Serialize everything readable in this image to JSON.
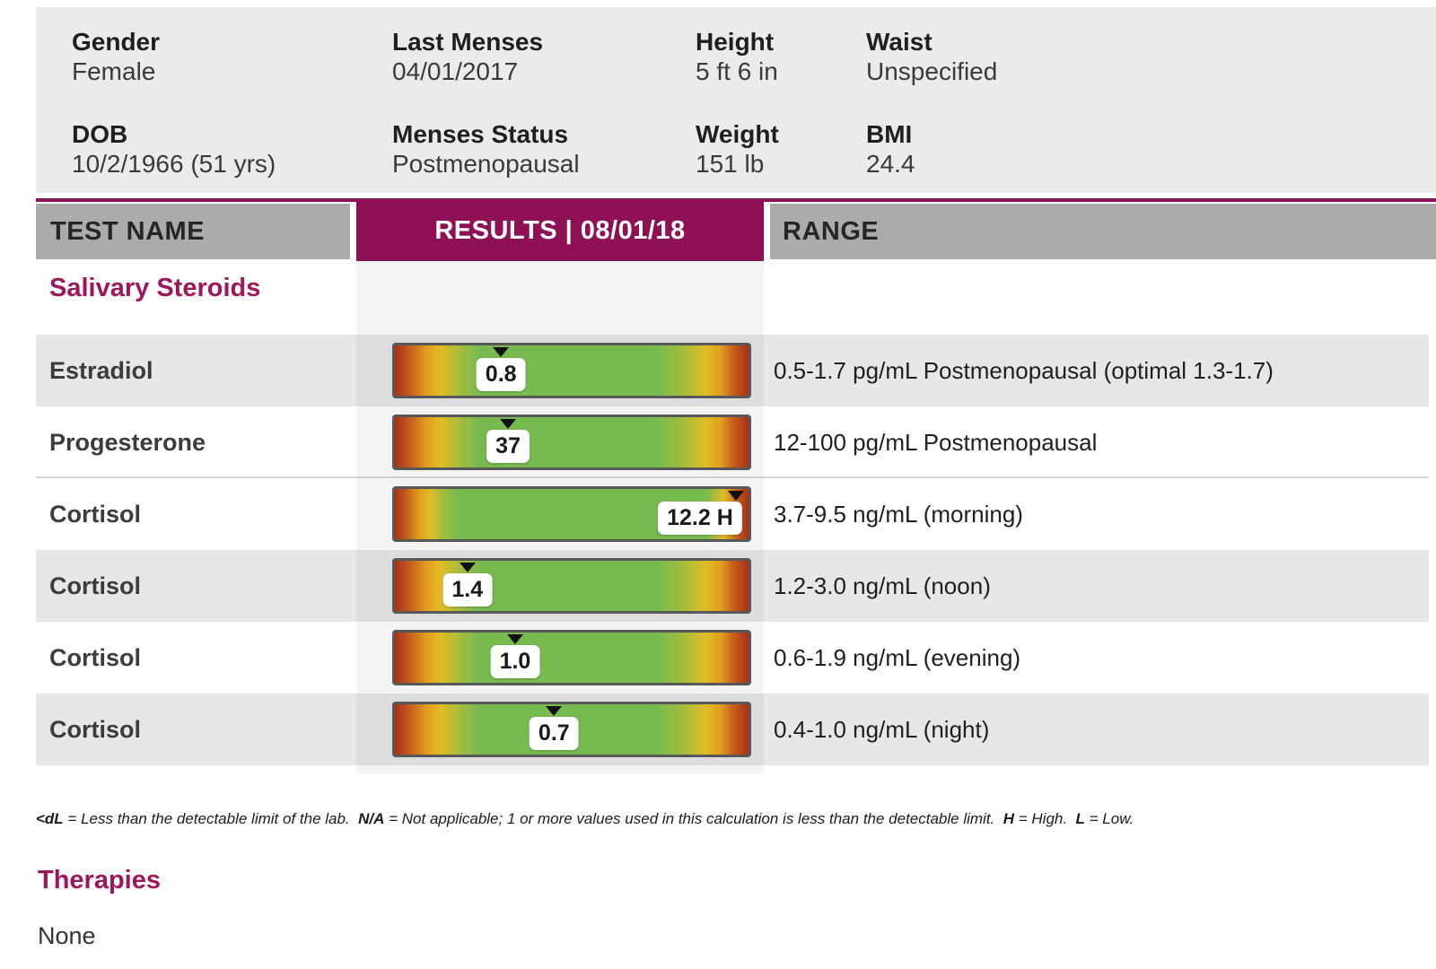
{
  "patient": {
    "fields": [
      {
        "label": "Gender",
        "value": "Female",
        "col": 0,
        "row": 0
      },
      {
        "label": "Last Menses",
        "value": "04/01/2017",
        "col": 1,
        "row": 0
      },
      {
        "label": "Height",
        "value": "5 ft 6 in",
        "col": 2,
        "row": 0
      },
      {
        "label": "Waist",
        "value": "Unspecified",
        "col": 3,
        "row": 0
      },
      {
        "label": "DOB",
        "value": "10/2/1966 (51 yrs)",
        "col": 0,
        "row": 1
      },
      {
        "label": "Menses Status",
        "value": "Postmenopausal",
        "col": 1,
        "row": 1
      },
      {
        "label": "Weight",
        "value": "151 lb",
        "col": 2,
        "row": 1
      },
      {
        "label": "BMI",
        "value": "24.4",
        "col": 3,
        "row": 1
      }
    ]
  },
  "table": {
    "headers": {
      "test_name": "TEST NAME",
      "results": "RESULTS | 08/01/18",
      "range": "RANGE"
    },
    "section": "Salivary Steroids",
    "rows": [
      {
        "test": "Estradiol",
        "result": "0.8",
        "marker_pct": 30,
        "range": "0.5-1.7 pg/mL Postmenopausal (optimal 1.3-1.7)",
        "shade": "gray",
        "gradient": "standard",
        "box_align": "center",
        "separator_above": false
      },
      {
        "test": "Progesterone",
        "result": "37",
        "marker_pct": 32,
        "range": "12-100 pg/mL Postmenopausal",
        "shade": "white",
        "gradient": "standard",
        "box_align": "center",
        "separator_above": false
      },
      {
        "test": "Cortisol",
        "result": "12.2 H",
        "marker_pct": 96.5,
        "range": "3.7-9.5 ng/mL (morning)",
        "shade": "white",
        "gradient": "morning",
        "box_align": "right",
        "separator_above": true
      },
      {
        "test": "Cortisol",
        "result": "1.4",
        "marker_pct": 20.5,
        "range": "1.2-3.0 ng/mL (noon)",
        "shade": "gray",
        "gradient": "standard",
        "box_align": "center",
        "separator_above": false
      },
      {
        "test": "Cortisol",
        "result": "1.0",
        "marker_pct": 34,
        "range": "0.6-1.9 ng/mL (evening)",
        "shade": "white",
        "gradient": "standard",
        "box_align": "center",
        "separator_above": false
      },
      {
        "test": "Cortisol",
        "result": "0.7",
        "marker_pct": 45,
        "range": "0.4-1.0 ng/mL (night)",
        "shade": "gray",
        "gradient": "standard",
        "box_align": "center",
        "separator_above": false
      }
    ]
  },
  "footnote": {
    "b1": "<dL",
    "t1": " = Less than the detectable limit of the lab.  ",
    "b2": "N/A",
    "t2": " = Not applicable; 1 or more values used in this calculation is less than the detectable limit.  ",
    "b3": "H",
    "t3": " = High.  ",
    "b4": "L",
    "t4": " = Low."
  },
  "therapies": {
    "title": "Therapies",
    "value": "None"
  },
  "colors": {
    "maroon_header": "#8e1156",
    "section_heading": "#9c175c",
    "column_header_gray": "#ababab",
    "row_stripe_gray": "#e7e7e7",
    "panel_gray": "#ebebeb",
    "bar_green": "#76ba50",
    "bar_yellow": "#e2bc25",
    "bar_red": "#a93016"
  }
}
